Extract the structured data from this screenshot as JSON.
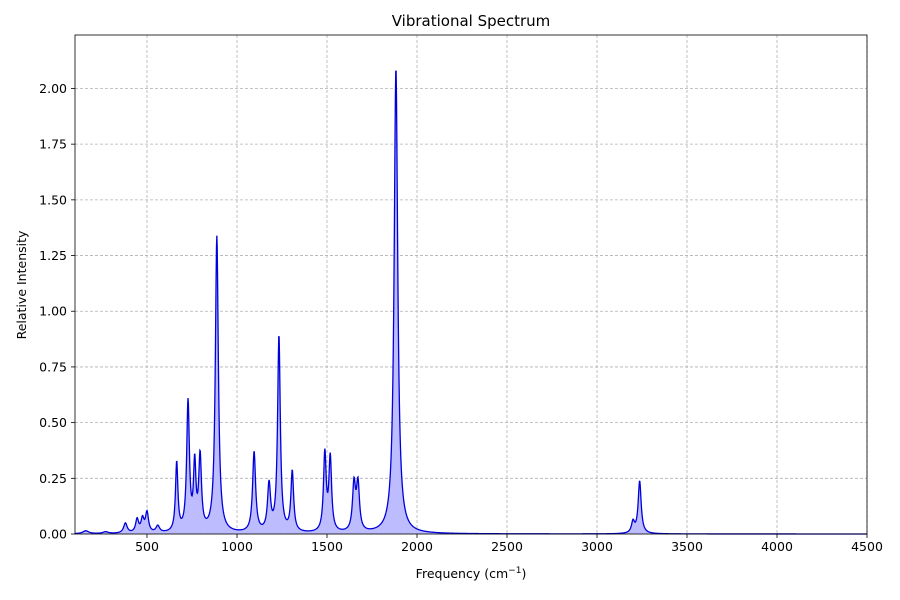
{
  "chart_data": {
    "type": "area",
    "title": "Vibrational Spectrum",
    "xlabel": "Frequency (cm",
    "xlabel_sup": "−1",
    "xlabel_close": ")",
    "ylabel": "Relative Intensity",
    "xlim": [
      100,
      4500
    ],
    "ylim": [
      0,
      2.24
    ],
    "x_ticks": [
      500,
      1000,
      1500,
      2000,
      2500,
      3000,
      3500,
      4000,
      4500
    ],
    "x_tick_labels": [
      "500",
      "1000",
      "1500",
      "2000",
      "2500",
      "3000",
      "3500",
      "4000",
      "4500"
    ],
    "y_ticks": [
      0,
      0.25,
      0.5,
      0.75,
      1.0,
      1.25,
      1.5,
      1.75,
      2.0
    ],
    "y_tick_labels": [
      "0.00",
      "0.25",
      "0.50",
      "0.75",
      "1.00",
      "1.25",
      "1.50",
      "1.75",
      "2.00"
    ],
    "grid": true,
    "line_color": "#0000dd",
    "fill_color": "#bcbcff",
    "series": [
      {
        "peaks": [
          {
            "center": 160,
            "height": 0.013,
            "width": 20
          },
          {
            "center": 270,
            "height": 0.008,
            "width": 18
          },
          {
            "center": 380,
            "height": 0.045,
            "width": 12
          },
          {
            "center": 445,
            "height": 0.06,
            "width": 10
          },
          {
            "center": 475,
            "height": 0.06,
            "width": 10
          },
          {
            "center": 500,
            "height": 0.09,
            "width": 10
          },
          {
            "center": 560,
            "height": 0.03,
            "width": 12
          },
          {
            "center": 665,
            "height": 0.31,
            "width": 8
          },
          {
            "center": 728,
            "height": 0.58,
            "width": 9
          },
          {
            "center": 765,
            "height": 0.29,
            "width": 8
          },
          {
            "center": 795,
            "height": 0.33,
            "width": 9
          },
          {
            "center": 888,
            "height": 1.33,
            "width": 10
          },
          {
            "center": 1095,
            "height": 0.36,
            "width": 10
          },
          {
            "center": 1178,
            "height": 0.21,
            "width": 10
          },
          {
            "center": 1233,
            "height": 0.88,
            "width": 9
          },
          {
            "center": 1307,
            "height": 0.27,
            "width": 9
          },
          {
            "center": 1488,
            "height": 0.35,
            "width": 9
          },
          {
            "center": 1518,
            "height": 0.33,
            "width": 9
          },
          {
            "center": 1650,
            "height": 0.21,
            "width": 10
          },
          {
            "center": 1672,
            "height": 0.21,
            "width": 10
          },
          {
            "center": 1883,
            "height": 2.09,
            "width": 12
          },
          {
            "center": 3200,
            "height": 0.05,
            "width": 10
          },
          {
            "center": 3237,
            "height": 0.235,
            "width": 10
          }
        ]
      }
    ]
  }
}
